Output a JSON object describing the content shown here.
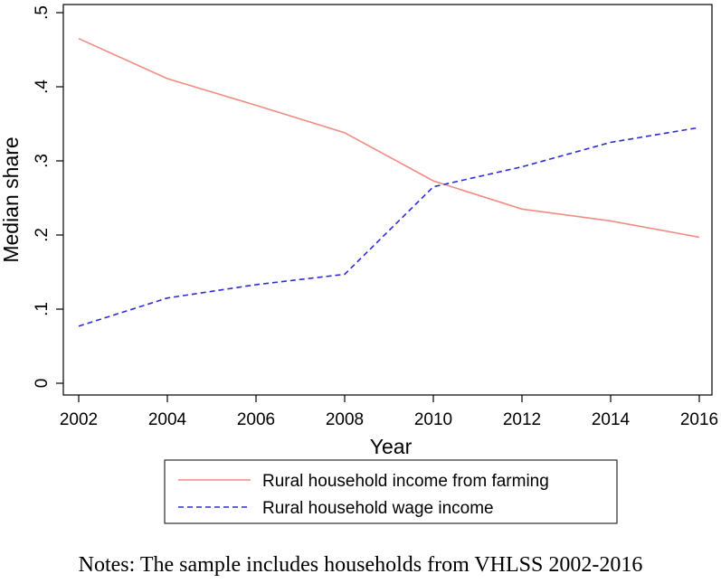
{
  "chart_data": {
    "type": "line",
    "x": [
      2002,
      2004,
      2006,
      2008,
      2010,
      2012,
      2014,
      2016
    ],
    "xticks": [
      "2002",
      "2004",
      "2006",
      "2008",
      "2010",
      "2012",
      "2014",
      "2016"
    ],
    "yticks": [
      "0",
      ".1",
      ".2",
      ".3",
      ".4",
      ".5"
    ],
    "ylim": [
      0,
      0.5
    ],
    "xlim": [
      2002,
      2016
    ],
    "xlabel": "Year",
    "ylabel": "Median share",
    "grid": false,
    "legend_position": "bottom",
    "series": [
      {
        "name": "Rural household income from farming",
        "color": "#f08c82",
        "style": "solid",
        "values": [
          0.465,
          0.411,
          0.375,
          0.338,
          0.273,
          0.235,
          0.219,
          0.197
        ]
      },
      {
        "name": "Rural household wage income",
        "color": "#2b2bd6",
        "style": "dashed",
        "values": [
          0.077,
          0.115,
          0.133,
          0.147,
          0.265,
          0.292,
          0.325,
          0.345
        ]
      }
    ]
  },
  "notes": "Notes: The sample includes households from VHLSS 2002-2016"
}
